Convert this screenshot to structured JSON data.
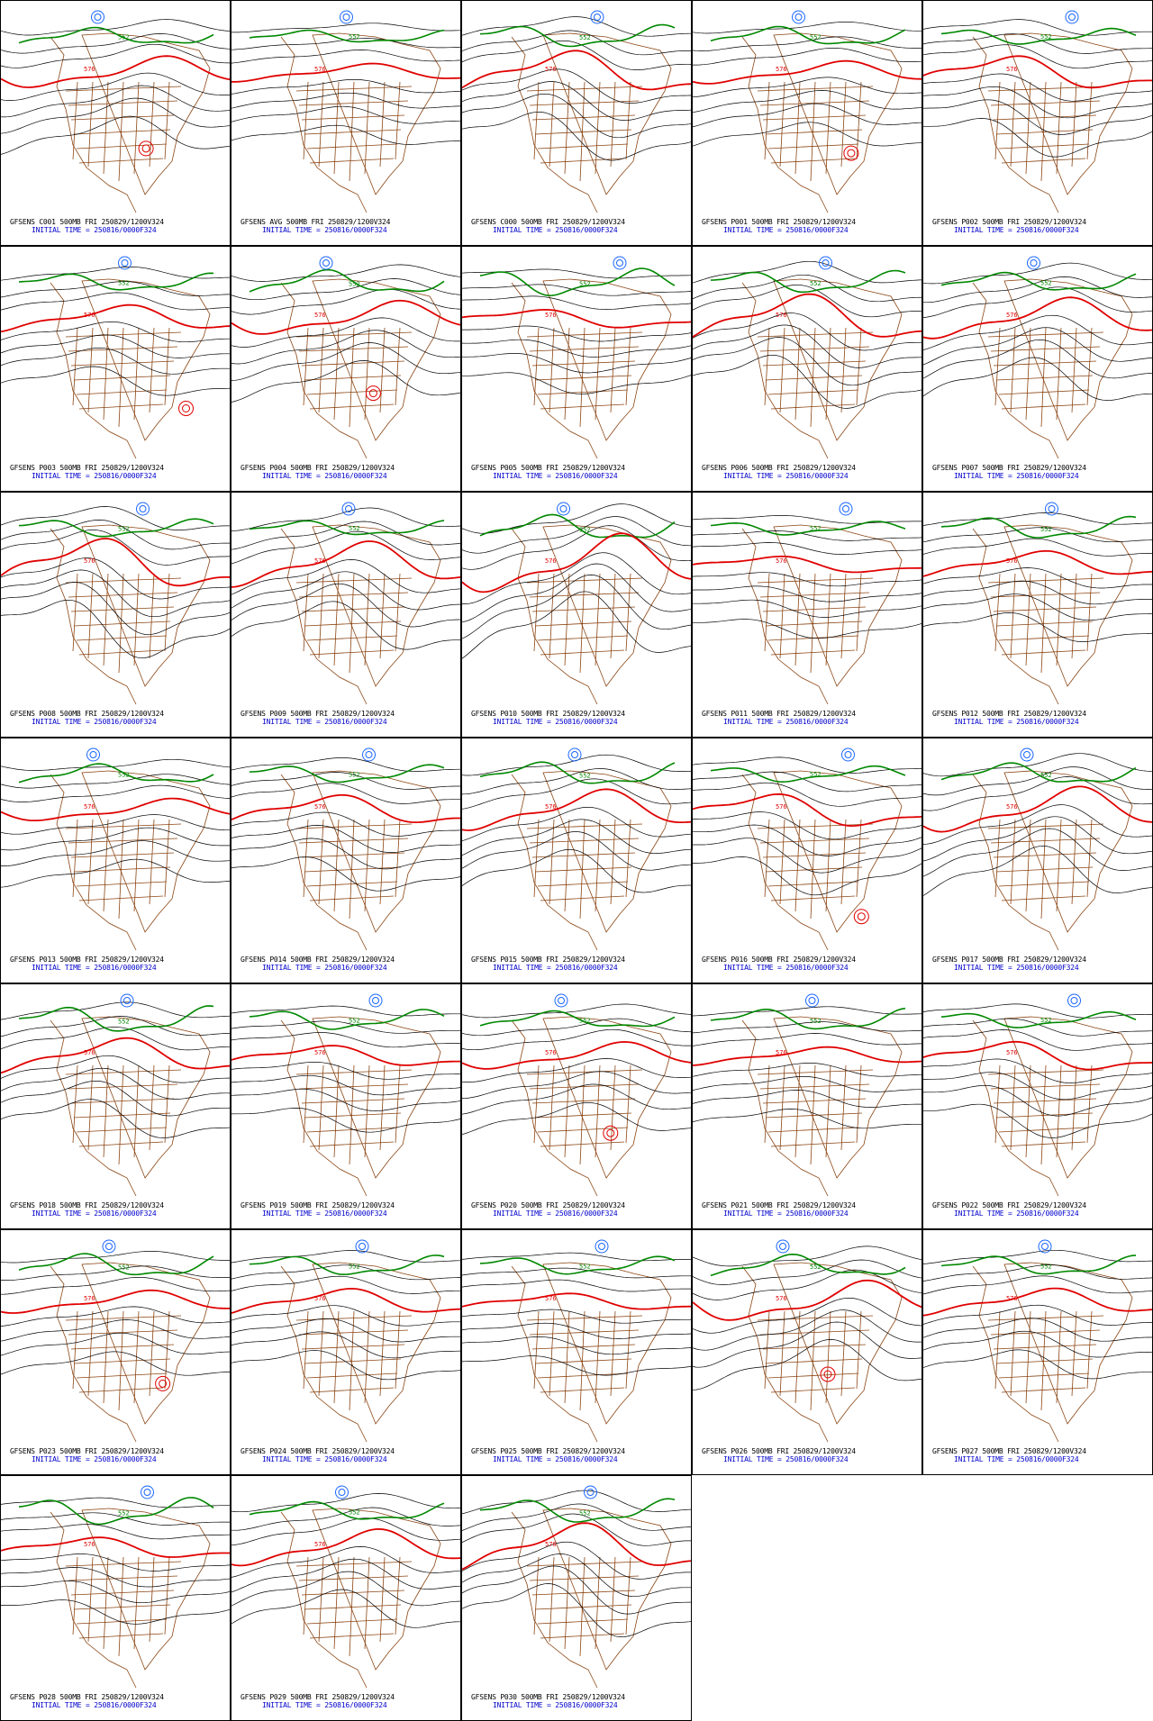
{
  "colors": {
    "contour": "#000000",
    "contour_576": "#e00000",
    "contour_552": "#008800",
    "low_center": "#1a66ff",
    "map_outline": "#8b4513",
    "initial_time_text": "#0000cc"
  },
  "contour_labels": {
    "red": "576",
    "green": "552"
  },
  "panels": [
    {
      "title": "GFSENS C001 500MB FRI 250829/1200V324",
      "initial": "INITIAL TIME = 250816/0000F324",
      "red_amp": 14,
      "green_amp": 8,
      "phase": 0.3,
      "low": true
    },
    {
      "title": "GFSENS AVG 500MB FRI 250829/1200V324",
      "initial": "INITIAL TIME = 250816/0000F324",
      "red_amp": 8,
      "green_amp": 6,
      "phase": 1.1,
      "low": false
    },
    {
      "title": "GFSENS C000 500MB FRI 250829/1200V324",
      "initial": "INITIAL TIME = 250816/0000F324",
      "red_amp": 20,
      "green_amp": 10,
      "phase": 2.0,
      "low": false
    },
    {
      "title": "GFSENS P001 500MB FRI 250829/1200V324",
      "initial": "INITIAL TIME = 250816/0000F324",
      "red_amp": 10,
      "green_amp": 9,
      "phase": 0.7,
      "low": true
    },
    {
      "title": "GFSENS P002 500MB FRI 250829/1200V324",
      "initial": "INITIAL TIME = 250816/0000F324",
      "red_amp": 16,
      "green_amp": 7,
      "phase": 2.6,
      "low": false
    },
    {
      "title": "GFSENS P003 500MB FRI 250829/1200V324",
      "initial": "INITIAL TIME = 250816/0000F324",
      "red_amp": 12,
      "green_amp": 8,
      "phase": 1.5,
      "low": true
    },
    {
      "title": "GFSENS P004 500MB FRI 250829/1200V324",
      "initial": "INITIAL TIME = 250816/0000F324",
      "red_amp": 15,
      "green_amp": 11,
      "phase": 0.2,
      "low": true
    },
    {
      "title": "GFSENS P005 500MB FRI 250829/1200V324",
      "initial": "INITIAL TIME = 250816/0000F324",
      "red_amp": 9,
      "green_amp": 12,
      "phase": 3.0,
      "low": false
    },
    {
      "title": "GFSENS P006 500MB FRI 250829/1200V324",
      "initial": "INITIAL TIME = 250816/0000F324",
      "red_amp": 22,
      "green_amp": 10,
      "phase": 1.9,
      "low": false
    },
    {
      "title": "GFSENS P007 500MB FRI 250829/1200V324",
      "initial": "INITIAL TIME = 250816/0000F324",
      "red_amp": 18,
      "green_amp": 9,
      "phase": 0.9,
      "low": false
    },
    {
      "title": "GFSENS P008 500MB FRI 250829/1200V324",
      "initial": "INITIAL TIME = 250816/0000F324",
      "red_amp": 24,
      "green_amp": 8,
      "phase": 2.3,
      "low": false
    },
    {
      "title": "GFSENS P009 500MB FRI 250829/1200V324",
      "initial": "INITIAL TIME = 250816/0000F324",
      "red_amp": 20,
      "green_amp": 7,
      "phase": 1.2,
      "low": false
    },
    {
      "title": "GFSENS P010 500MB FRI 250829/1200V324",
      "initial": "INITIAL TIME = 250816/0000F324",
      "red_amp": 26,
      "green_amp": 12,
      "phase": 0.5,
      "low": false
    },
    {
      "title": "GFSENS P011 500MB FRI 250829/1200V324",
      "initial": "INITIAL TIME = 250816/0000F324",
      "red_amp": 8,
      "green_amp": 6,
      "phase": 2.8,
      "low": false
    },
    {
      "title": "GFSENS P012 500MB FRI 250829/1200V324",
      "initial": "INITIAL TIME = 250816/0000F324",
      "red_amp": 12,
      "green_amp": 10,
      "phase": 1.7,
      "low": false
    },
    {
      "title": "GFSENS P013 500MB FRI 250829/1200V324",
      "initial": "INITIAL TIME = 250816/0000F324",
      "red_amp": 10,
      "green_amp": 9,
      "phase": 0.1,
      "low": false
    },
    {
      "title": "GFSENS P014 500MB FRI 250829/1200V324",
      "initial": "INITIAL TIME = 250816/0000F324",
      "red_amp": 14,
      "green_amp": 8,
      "phase": 2.1,
      "low": false
    },
    {
      "title": "GFSENS P015 500MB FRI 250829/1200V324",
      "initial": "INITIAL TIME = 250816/0000F324",
      "red_amp": 18,
      "green_amp": 11,
      "phase": 1.0,
      "low": false
    },
    {
      "title": "GFSENS P016 500MB FRI 250829/1200V324",
      "initial": "INITIAL TIME = 250816/0000F324",
      "red_amp": 16,
      "green_amp": 7,
      "phase": 2.9,
      "low": true
    },
    {
      "title": "GFSENS P017 500MB FRI 250829/1200V324",
      "initial": "INITIAL TIME = 250816/0000F324",
      "red_amp": 20,
      "green_amp": 10,
      "phase": 0.6,
      "low": false
    },
    {
      "title": "GFSENS P018 500MB FRI 250829/1200V324",
      "initial": "INITIAL TIME = 250816/0000F324",
      "red_amp": 16,
      "green_amp": 12,
      "phase": 1.6,
      "low": false
    },
    {
      "title": "GFSENS P019 500MB FRI 250829/1200V324",
      "initial": "INITIAL TIME = 250816/0000F324",
      "red_amp": 10,
      "green_amp": 9,
      "phase": 2.4,
      "low": false
    },
    {
      "title": "GFSENS P020 500MB FRI 250829/1200V324",
      "initial": "INITIAL TIME = 250816/0000F324",
      "red_amp": 12,
      "green_amp": 8,
      "phase": 0.4,
      "low": true
    },
    {
      "title": "GFSENS P021 500MB FRI 250829/1200V324",
      "initial": "INITIAL TIME = 250816/0000F324",
      "red_amp": 8,
      "green_amp": 10,
      "phase": 1.3,
      "low": false
    },
    {
      "title": "GFSENS P022 500MB FRI 250829/1200V324",
      "initial": "INITIAL TIME = 250816/0000F324",
      "red_amp": 14,
      "green_amp": 7,
      "phase": 2.7,
      "low": false
    },
    {
      "title": "GFSENS P023 500MB FRI 250829/1200V324",
      "initial": "INITIAL TIME = 250816/0000F324",
      "red_amp": 10,
      "green_amp": 11,
      "phase": 0.8,
      "low": true
    },
    {
      "title": "GFSENS P024 500MB FRI 250829/1200V324",
      "initial": "INITIAL TIME = 250816/0000F324",
      "red_amp": 12,
      "green_amp": 9,
      "phase": 1.8,
      "low": false
    },
    {
      "title": "GFSENS P025 500MB FRI 250829/1200V324",
      "initial": "INITIAL TIME = 250816/0000F324",
      "red_amp": 8,
      "green_amp": 8,
      "phase": 2.2,
      "low": false
    },
    {
      "title": "GFSENS P026 500MB FRI 250829/1200V324",
      "initial": "INITIAL TIME = 250816/0000F324",
      "red_amp": 18,
      "green_amp": 10,
      "phase": 0.0,
      "low": true
    },
    {
      "title": "GFSENS P027 500MB FRI 250829/1200V324",
      "initial": "INITIAL TIME = 250816/0000F324",
      "red_amp": 12,
      "green_amp": 9,
      "phase": 1.4,
      "low": false
    },
    {
      "title": "GFSENS P028 500MB FRI 250829/1200V324",
      "initial": "INITIAL TIME = 250816/0000F324",
      "red_amp": 10,
      "green_amp": 12,
      "phase": 2.5,
      "low": false
    },
    {
      "title": "GFSENS P029 500MB FRI 250829/1200V324",
      "initial": "INITIAL TIME = 250816/0000F324",
      "red_amp": 16,
      "green_amp": 9,
      "phase": 0.9,
      "low": false
    },
    {
      "title": "GFSENS P030 500MB FRI 250829/1200V324",
      "initial": "INITIAL TIME = 250816/0000F324",
      "red_amp": 22,
      "green_amp": 11,
      "phase": 1.7,
      "low": false
    }
  ]
}
